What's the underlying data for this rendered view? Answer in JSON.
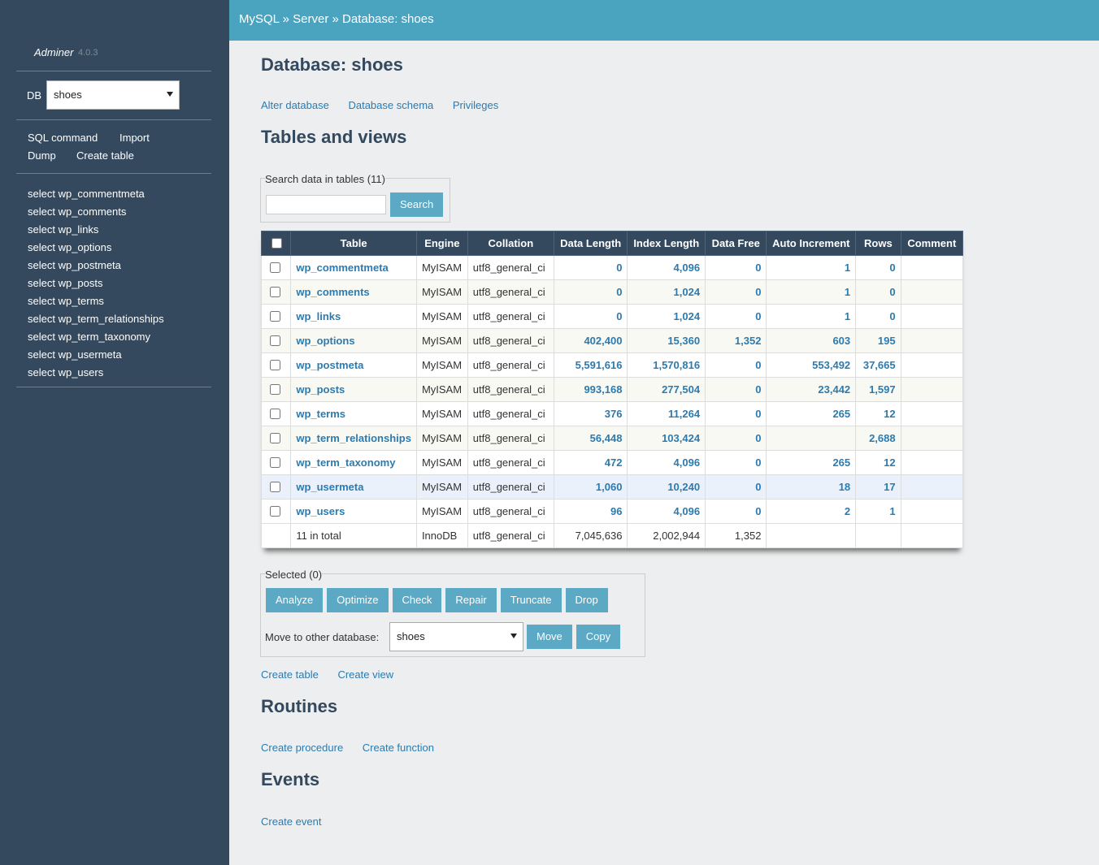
{
  "header": {
    "breadcrumb": [
      "MySQL",
      "Server",
      "Database: shoes"
    ],
    "separator": "»"
  },
  "sidebar": {
    "app": "Adminer",
    "version": "4.0.3",
    "db_label": "DB",
    "db_value": "shoes",
    "links": [
      "SQL command",
      "Import",
      "Dump",
      "Create table"
    ],
    "tables": [
      "select wp_commentmeta",
      "select wp_comments",
      "select wp_links",
      "select wp_options",
      "select wp_postmeta",
      "select wp_posts",
      "select wp_terms",
      "select wp_term_relationships",
      "select wp_term_taxonomy",
      "select wp_usermeta",
      "select wp_users"
    ]
  },
  "main": {
    "title": "Database: shoes",
    "actions": [
      "Alter database",
      "Database schema",
      "Privileges"
    ],
    "tables_heading": "Tables and views",
    "search_legend": "Search data in tables (11)",
    "search_button": "Search",
    "table": {
      "headers": [
        "Table",
        "Engine",
        "Collation",
        "Data Length",
        "Index Length",
        "Data Free",
        "Auto Increment",
        "Rows",
        "Comment"
      ],
      "rows": [
        {
          "name": "wp_commentmeta",
          "engine": "MyISAM",
          "collation": "utf8_general_ci",
          "data_length": "0",
          "index_length": "4,096",
          "data_free": "0",
          "auto_increment": "1",
          "rows": "0"
        },
        {
          "name": "wp_comments",
          "engine": "MyISAM",
          "collation": "utf8_general_ci",
          "data_length": "0",
          "index_length": "1,024",
          "data_free": "0",
          "auto_increment": "1",
          "rows": "0"
        },
        {
          "name": "wp_links",
          "engine": "MyISAM",
          "collation": "utf8_general_ci",
          "data_length": "0",
          "index_length": "1,024",
          "data_free": "0",
          "auto_increment": "1",
          "rows": "0"
        },
        {
          "name": "wp_options",
          "engine": "MyISAM",
          "collation": "utf8_general_ci",
          "data_length": "402,400",
          "index_length": "15,360",
          "data_free": "1,352",
          "auto_increment": "603",
          "rows": "195"
        },
        {
          "name": "wp_postmeta",
          "engine": "MyISAM",
          "collation": "utf8_general_ci",
          "data_length": "5,591,616",
          "index_length": "1,570,816",
          "data_free": "0",
          "auto_increment": "553,492",
          "rows": "37,665"
        },
        {
          "name": "wp_posts",
          "engine": "MyISAM",
          "collation": "utf8_general_ci",
          "data_length": "993,168",
          "index_length": "277,504",
          "data_free": "0",
          "auto_increment": "23,442",
          "rows": "1,597"
        },
        {
          "name": "wp_terms",
          "engine": "MyISAM",
          "collation": "utf8_general_ci",
          "data_length": "376",
          "index_length": "11,264",
          "data_free": "0",
          "auto_increment": "265",
          "rows": "12"
        },
        {
          "name": "wp_term_relationships",
          "engine": "MyISAM",
          "collation": "utf8_general_ci",
          "data_length": "56,448",
          "index_length": "103,424",
          "data_free": "0",
          "rows": "2,688"
        },
        {
          "name": "wp_term_taxonomy",
          "engine": "MyISAM",
          "collation": "utf8_general_ci",
          "data_length": "472",
          "index_length": "4,096",
          "data_free": "0",
          "auto_increment": "265",
          "rows": "12"
        },
        {
          "name": "wp_usermeta",
          "engine": "MyISAM",
          "collation": "utf8_general_ci",
          "data_length": "1,060",
          "index_length": "10,240",
          "data_free": "0",
          "auto_increment": "18",
          "rows": "17"
        },
        {
          "name": "wp_users",
          "engine": "MyISAM",
          "collation": "utf8_general_ci",
          "data_length": "96",
          "index_length": "4,096",
          "data_free": "0",
          "auto_increment": "2",
          "rows": "1"
        }
      ],
      "total": {
        "name": "11 in total",
        "engine": "InnoDB",
        "collation": "utf8_general_ci",
        "data_length": "7,045,636",
        "index_length": "2,002,944",
        "data_free": "1,352"
      }
    },
    "selected_legend": "Selected (0)",
    "selected_buttons": [
      "Analyze",
      "Optimize",
      "Check",
      "Repair",
      "Truncate",
      "Drop"
    ],
    "move_label": "Move to other database:",
    "move_db": "shoes",
    "move_buttons": [
      "Move",
      "Copy"
    ],
    "table_links": [
      "Create table",
      "Create view"
    ],
    "routines_heading": "Routines",
    "routine_links": [
      "Create procedure",
      "Create function"
    ],
    "events_heading": "Events",
    "event_links": [
      "Create event"
    ]
  }
}
